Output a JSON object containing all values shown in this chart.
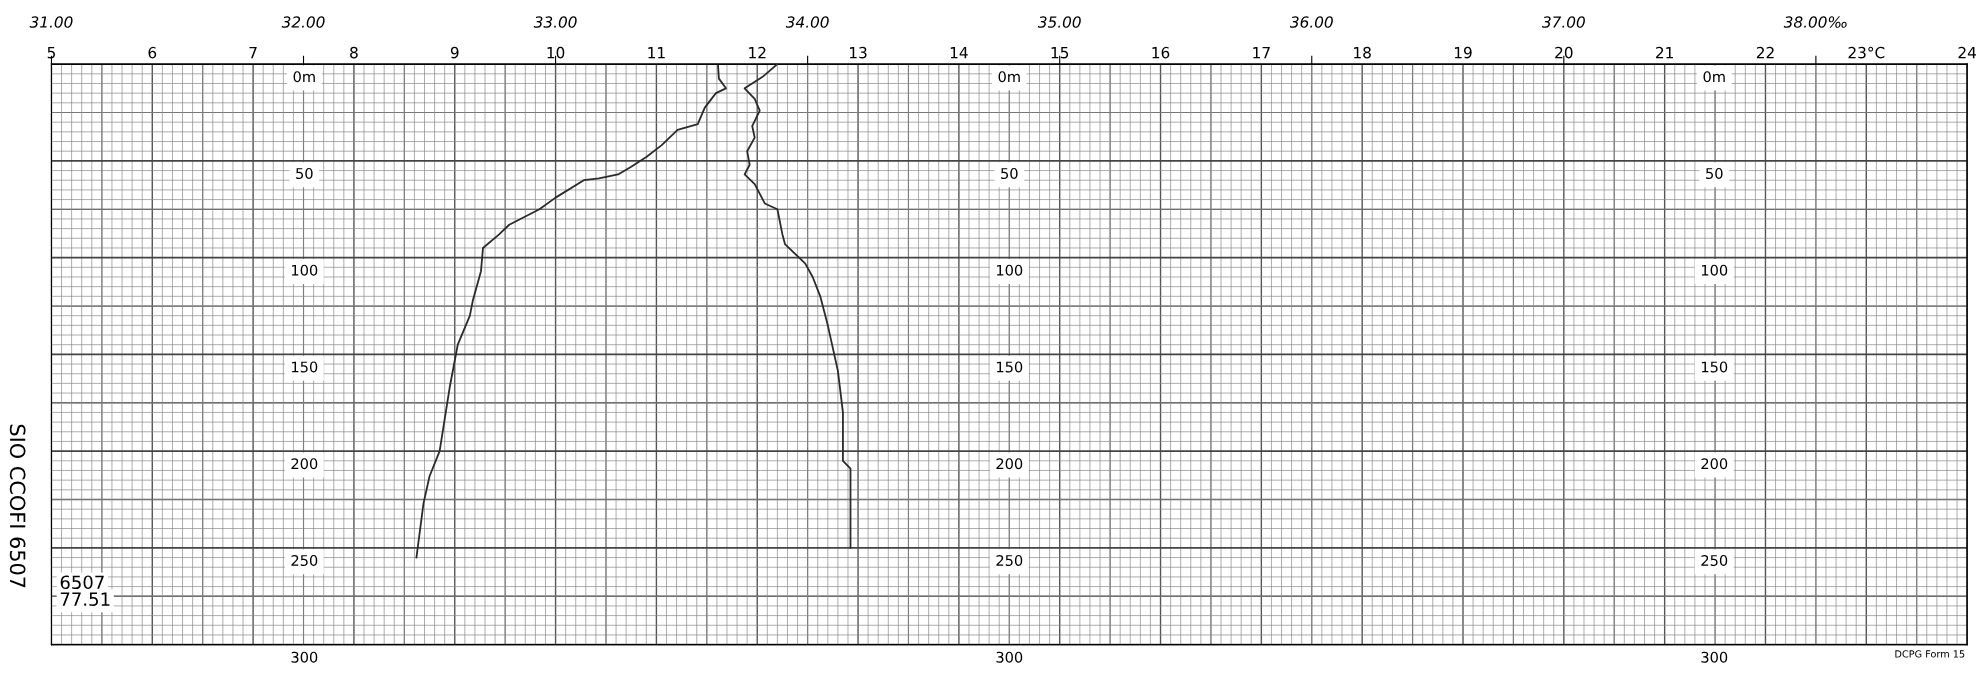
{
  "chart_data": {
    "type": "line",
    "xlim": [
      5,
      24
    ],
    "xticks": [
      5,
      6,
      7,
      8,
      9,
      10,
      11,
      12,
      13,
      14,
      15,
      16,
      17,
      18,
      19,
      20,
      21,
      22,
      {
        "value": 23,
        "label": "23°C"
      },
      24
    ],
    "x2lim": [
      31,
      38.6
    ],
    "x2ticks": [
      {
        "value": 31,
        "label": "31.00"
      },
      {
        "value": 32,
        "label": "32.00"
      },
      {
        "value": 33,
        "label": "33.00"
      },
      {
        "value": 34,
        "label": "34.00"
      },
      {
        "value": 35,
        "label": "35.00"
      },
      {
        "value": 36,
        "label": "36.00"
      },
      {
        "value": 37,
        "label": "37.00"
      },
      {
        "value": 38,
        "label": "38.00‰"
      }
    ],
    "ylim": [
      300,
      0
    ],
    "yticks": [
      {
        "value": 0,
        "label": "0m"
      },
      50,
      100,
      150,
      200,
      250,
      300
    ],
    "y2lim": [
      300,
      0
    ],
    "y2ticks": [
      {
        "value": 0,
        "label": "0m"
      },
      50,
      100,
      150,
      200,
      250,
      300
    ],
    "y3lim": [
      300,
      0
    ],
    "y3ticks": [
      {
        "value": 0,
        "label": "0m"
      },
      50,
      100,
      150,
      200,
      250,
      300
    ],
    "grid": true,
    "legend": false,
    "marker": "none",
    "line_style": "solid",
    "series": [
      {
        "color": "#2b2b2b",
        "x": [
          11.61,
          11.62,
          11.69,
          11.59,
          11.48,
          11.41,
          11.21,
          11.05,
          10.9,
          10.75,
          10.62,
          10.43,
          10.28,
          10.0,
          9.84,
          9.54,
          9.44,
          9.28,
          9.26,
          9.18,
          9.15,
          9.03,
          8.95,
          8.85,
          8.75,
          8.69,
          8.62
        ],
        "values": [
          0,
          7.5,
          12.5,
          15,
          22.5,
          31,
          34,
          42,
          48,
          53,
          57,
          59,
          60,
          69,
          75,
          83,
          88,
          95,
          107,
          122,
          130,
          145,
          167,
          200,
          213,
          227,
          255
        ]
      },
      {
        "color": "#2b2b2b",
        "axis": "x2",
        "x": [
          33.88,
          33.82,
          33.75,
          33.79,
          33.81,
          33.78,
          33.79,
          33.76,
          33.77,
          33.75,
          33.79,
          33.83,
          33.88,
          33.9,
          33.91,
          33.99,
          34.02,
          34.05,
          34.08,
          34.12,
          34.14,
          34.14,
          34.17,
          34.17
        ],
        "values": [
          0,
          6.7,
          12.5,
          18,
          24,
          32,
          38,
          45,
          52,
          57,
          62,
          72,
          75,
          88,
          93,
          103,
          110,
          120,
          135,
          158.5,
          180,
          205,
          209,
          250
        ]
      }
    ],
    "annotations": [
      "SIO CCOFI 6507",
      "6507",
      "77.51",
      "DCPG Form 15"
    ]
  }
}
